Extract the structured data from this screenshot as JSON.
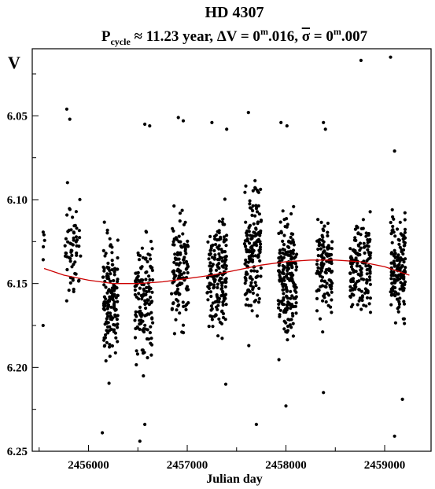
{
  "chart_data": {
    "type": "scatter",
    "title": "HD 4307",
    "subtitle": {
      "p": "P",
      "p_sub": "cycle",
      "approx": " ≈ 11.23 year, ",
      "delta": "ΔV = 0",
      "m1": "m",
      "v1": ".016, ",
      "sigma": "σ",
      "eq": " = 0",
      "m2": "m",
      "v2": ".007"
    },
    "xlabel": "Julian day",
    "ylabel": "V",
    "xlim": [
      2455430,
      2459470
    ],
    "ylim": [
      6.25,
      6.01
    ],
    "y_inverted": true,
    "xticks": [
      2456000,
      2457000,
      2458000,
      2459000
    ],
    "xtick_labels": [
      "2456000",
      "2457000",
      "2458000",
      "2459000"
    ],
    "yticks": [
      6.05,
      6.1,
      6.15,
      6.2,
      6.25
    ],
    "ytick_labels": [
      "6.05",
      "6.10",
      "6.15",
      "6.20",
      "6.25"
    ],
    "grid": false,
    "colors": {
      "points": "#000000",
      "fit": "#cc0000"
    },
    "seasons": [
      {
        "x_start": 2455540,
        "x_end": 2455560,
        "y_center": 6.12,
        "y_spread": 0.035,
        "n": 5
      },
      {
        "x_start": 2455760,
        "x_end": 2455920,
        "y_center": 6.13,
        "y_spread": 0.055,
        "n": 60
      },
      {
        "x_start": 2456140,
        "x_end": 2456300,
        "y_center": 6.16,
        "y_spread": 0.065,
        "n": 150
      },
      {
        "x_start": 2456470,
        "x_end": 2456650,
        "y_center": 6.16,
        "y_spread": 0.07,
        "n": 140
      },
      {
        "x_start": 2456840,
        "x_end": 2457010,
        "y_center": 6.14,
        "y_spread": 0.055,
        "n": 120
      },
      {
        "x_start": 2457200,
        "x_end": 2457400,
        "y_center": 6.145,
        "y_spread": 0.055,
        "n": 170
      },
      {
        "x_start": 2457580,
        "x_end": 2457750,
        "y_center": 6.13,
        "y_spread": 0.065,
        "n": 160
      },
      {
        "x_start": 2457920,
        "x_end": 2458110,
        "y_center": 6.145,
        "y_spread": 0.06,
        "n": 200
      },
      {
        "x_start": 2458310,
        "x_end": 2458470,
        "y_center": 6.14,
        "y_spread": 0.045,
        "n": 120
      },
      {
        "x_start": 2458650,
        "x_end": 2458860,
        "y_center": 6.14,
        "y_spread": 0.05,
        "n": 150
      },
      {
        "x_start": 2459060,
        "x_end": 2459210,
        "y_center": 6.14,
        "y_spread": 0.05,
        "n": 160
      }
    ],
    "extra_points": [
      {
        "x": 2455780,
        "y": 6.046
      },
      {
        "x": 2455810,
        "y": 6.052
      },
      {
        "x": 2456570,
        "y": 6.055
      },
      {
        "x": 2456620,
        "y": 6.056
      },
      {
        "x": 2456910,
        "y": 6.051
      },
      {
        "x": 2456960,
        "y": 6.053
      },
      {
        "x": 2457250,
        "y": 6.054
      },
      {
        "x": 2457400,
        "y": 6.058
      },
      {
        "x": 2457620,
        "y": 6.048
      },
      {
        "x": 2457950,
        "y": 6.054
      },
      {
        "x": 2458010,
        "y": 6.056
      },
      {
        "x": 2458380,
        "y": 6.054
      },
      {
        "x": 2458400,
        "y": 6.058
      },
      {
        "x": 2458760,
        "y": 6.017
      },
      {
        "x": 2459060,
        "y": 6.015
      },
      {
        "x": 2459100,
        "y": 6.071
      },
      {
        "x": 2456140,
        "y": 6.239
      },
      {
        "x": 2456520,
        "y": 6.244
      },
      {
        "x": 2456570,
        "y": 6.234
      },
      {
        "x": 2457700,
        "y": 6.234
      },
      {
        "x": 2458000,
        "y": 6.223
      },
      {
        "x": 2459100,
        "y": 6.241
      },
      {
        "x": 2459180,
        "y": 6.219
      },
      {
        "x": 2455540,
        "y": 6.175
      },
      {
        "x": 2457390,
        "y": 6.21
      },
      {
        "x": 2458380,
        "y": 6.215
      }
    ],
    "fit_curve": {
      "x": [
        2455550,
        2455750,
        2456000,
        2456250,
        2456500,
        2456750,
        2457000,
        2457250,
        2457500,
        2457750,
        2458000,
        2458250,
        2458500,
        2458750,
        2459000,
        2459250
      ],
      "y": [
        6.141,
        6.145,
        6.148,
        6.15,
        6.15,
        6.149,
        6.147,
        6.145,
        6.142,
        6.139,
        6.137,
        6.136,
        6.136,
        6.137,
        6.14,
        6.145
      ]
    }
  }
}
